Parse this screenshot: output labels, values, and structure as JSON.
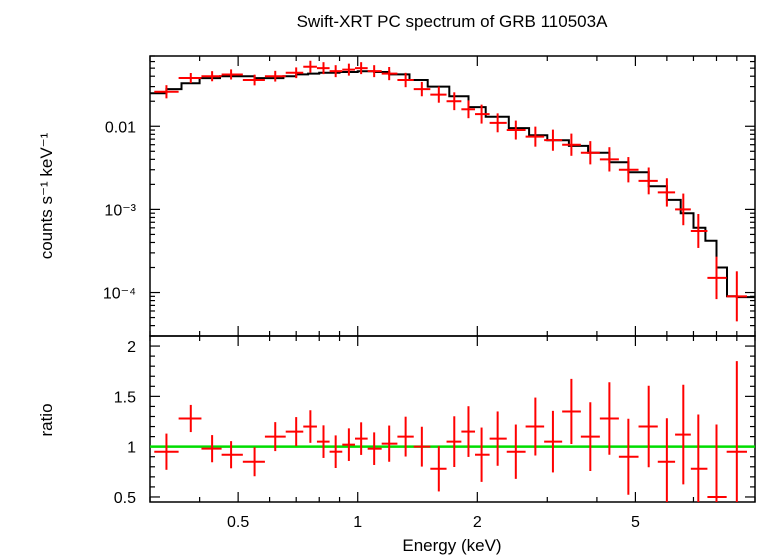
{
  "chart_data": [
    {
      "type": "scatter",
      "title": "Swift-XRT PC spectrum of GRB 110503A",
      "ylabel": "counts s⁻¹ keV⁻¹",
      "xscale": "log",
      "yscale": "log",
      "xlim": [
        0.3,
        10
      ],
      "ylim": [
        3e-05,
        0.07
      ],
      "ytick_labels": [
        "0.01",
        "10⁻³",
        "10⁻⁴"
      ],
      "ytick_values": [
        0.01,
        0.001,
        0.0001
      ],
      "colors": {
        "data": "#ff0000",
        "model": "#000000"
      },
      "series": [
        {
          "kind": "data",
          "x": [
            0.33,
            0.38,
            0.43,
            0.48,
            0.55,
            0.62,
            0.7,
            0.76,
            0.82,
            0.88,
            0.95,
            1.02,
            1.1,
            1.2,
            1.32,
            1.45,
            1.6,
            1.75,
            1.9,
            2.05,
            2.25,
            2.5,
            2.8,
            3.1,
            3.45,
            3.85,
            4.3,
            4.8,
            5.4,
            6.0,
            6.6,
            7.2,
            8.0,
            9.0
          ],
          "y": [
            0.026,
            0.038,
            0.04,
            0.042,
            0.036,
            0.04,
            0.044,
            0.052,
            0.05,
            0.046,
            0.048,
            0.05,
            0.046,
            0.043,
            0.036,
            0.028,
            0.024,
            0.02,
            0.016,
            0.014,
            0.011,
            0.009,
            0.0075,
            0.0068,
            0.006,
            0.0048,
            0.004,
            0.003,
            0.0022,
            0.0016,
            0.001,
            0.00055,
            0.00015,
            9e-05
          ],
          "yerr": [
            0.2,
            0.15,
            0.15,
            0.15,
            0.16,
            0.16,
            0.16,
            0.18,
            0.18,
            0.18,
            0.18,
            0.18,
            0.18,
            0.2,
            0.22,
            0.22,
            0.25,
            0.28,
            0.28,
            0.3,
            0.3,
            0.3,
            0.32,
            0.34,
            0.36,
            0.38,
            0.4,
            0.42,
            0.45,
            0.48,
            0.55,
            0.6,
            0.8,
            1.0
          ]
        },
        {
          "kind": "model",
          "x": [
            0.3,
            0.33,
            0.36,
            0.4,
            0.45,
            0.5,
            0.55,
            0.6,
            0.65,
            0.7,
            0.75,
            0.8,
            0.9,
            1.0,
            1.1,
            1.2,
            1.35,
            1.5,
            1.7,
            1.9,
            2.1,
            2.4,
            2.7,
            3.0,
            3.4,
            3.8,
            4.3,
            4.8,
            5.4,
            6.0,
            6.5,
            7.0,
            7.5,
            8.0,
            8.5,
            9.0,
            10.0
          ],
          "y": [
            0.025,
            0.028,
            0.033,
            0.038,
            0.04,
            0.04,
            0.038,
            0.038,
            0.04,
            0.042,
            0.043,
            0.044,
            0.045,
            0.046,
            0.045,
            0.042,
            0.036,
            0.03,
            0.023,
            0.017,
            0.013,
            0.0095,
            0.0078,
            0.0068,
            0.0058,
            0.0048,
            0.0037,
            0.0028,
            0.0019,
            0.0013,
            0.0009,
            0.0006,
            0.00042,
            0.0002,
            9e-05,
            8.8e-05,
            8.8e-05
          ]
        }
      ]
    },
    {
      "type": "scatter",
      "xlabel": "Energy (keV)",
      "ylabel": "ratio",
      "xscale": "log",
      "xlim": [
        0.3,
        10
      ],
      "ylim": [
        0.45,
        2.1
      ],
      "xtick_labels": [
        "0.5",
        "1",
        "2",
        "5"
      ],
      "xtick_values": [
        0.5,
        1,
        2,
        5
      ],
      "ytick_labels": [
        "0.5",
        "1",
        "1.5",
        "2"
      ],
      "ytick_values": [
        0.5,
        1,
        1.5,
        2
      ],
      "reference_line": 1,
      "colors": {
        "data": "#ff0000",
        "reference": "#00dd00"
      },
      "series": [
        {
          "kind": "data",
          "x": [
            0.33,
            0.38,
            0.43,
            0.48,
            0.55,
            0.62,
            0.7,
            0.76,
            0.82,
            0.88,
            0.95,
            1.02,
            1.1,
            1.2,
            1.32,
            1.45,
            1.6,
            1.75,
            1.9,
            2.05,
            2.25,
            2.5,
            2.8,
            3.1,
            3.45,
            3.85,
            4.3,
            4.8,
            5.4,
            6.0,
            6.6,
            7.2,
            8.0,
            9.0
          ],
          "y": [
            0.95,
            1.28,
            0.98,
            0.92,
            0.85,
            1.1,
            1.15,
            1.2,
            1.05,
            0.95,
            1.02,
            1.08,
            0.98,
            1.03,
            1.1,
            1.0,
            0.78,
            1.05,
            1.15,
            0.92,
            1.08,
            0.95,
            1.2,
            1.05,
            1.35,
            1.1,
            1.28,
            0.9,
            1.2,
            0.85,
            1.12,
            0.78,
            0.5,
            0.95
          ],
          "yerr": [
            0.2,
            0.15,
            0.15,
            0.15,
            0.16,
            0.16,
            0.16,
            0.18,
            0.18,
            0.18,
            0.18,
            0.18,
            0.18,
            0.2,
            0.22,
            0.22,
            0.25,
            0.28,
            0.28,
            0.3,
            0.3,
            0.3,
            0.32,
            0.34,
            0.36,
            0.38,
            0.4,
            0.42,
            0.45,
            0.48,
            0.55,
            0.6,
            0.8,
            1.0
          ]
        }
      ]
    }
  ]
}
